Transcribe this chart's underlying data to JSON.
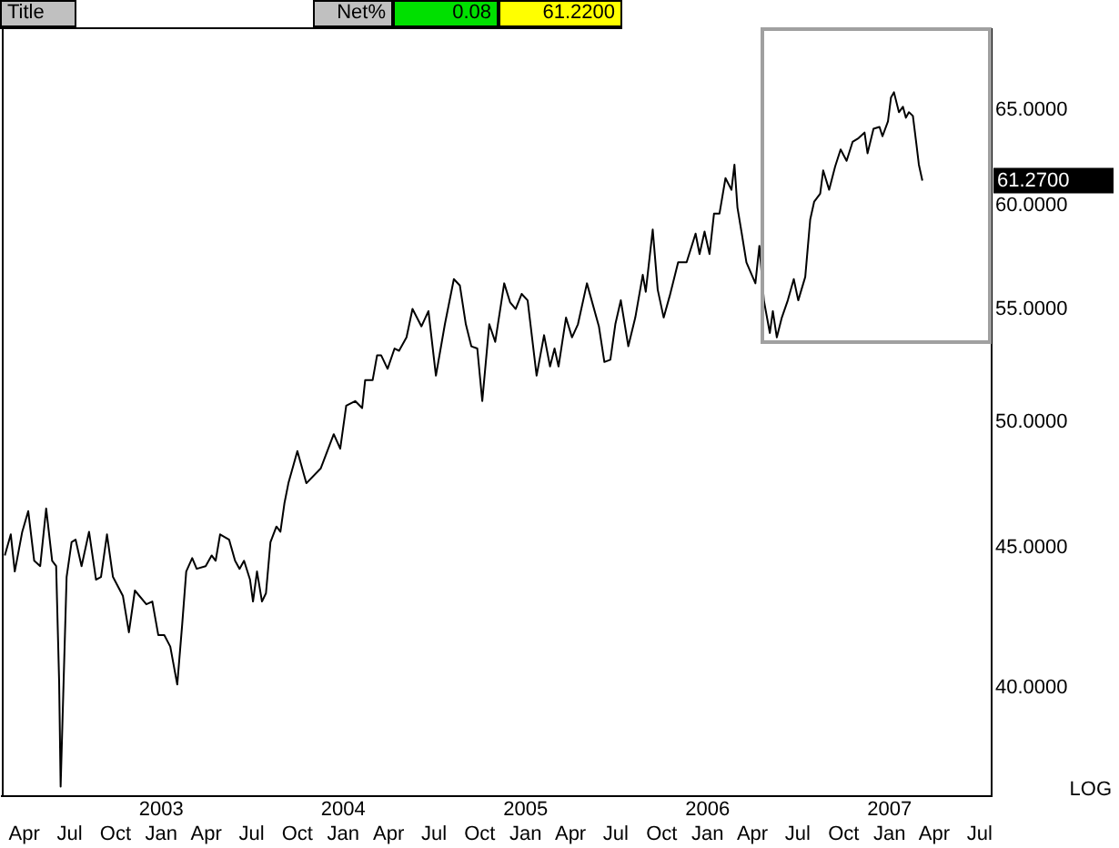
{
  "chart_data": {
    "type": "line",
    "annotations": [
      "Title",
      "Net%",
      "0.08",
      "61.2200",
      "LOG"
    ],
    "x": [
      "2002-02-21",
      "2002-03-05",
      "2002-03-13",
      "2002-03-28",
      "2002-04-09",
      "2002-04-21",
      "2002-05-03",
      "2002-05-15",
      "2002-05-27",
      "2002-06-04",
      "2002-06-10",
      "2002-06-13",
      "2002-06-19",
      "2002-06-25",
      "2002-07-05",
      "2002-07-13",
      "2002-07-25",
      "2002-08-09",
      "2002-08-23",
      "2002-09-02",
      "2002-09-14",
      "2002-09-26",
      "2002-10-16",
      "2002-10-28",
      "2002-11-09",
      "2002-12-02",
      "2002-12-14",
      "2002-12-26",
      "2003-01-07",
      "2003-01-19",
      "2003-02-02",
      "2003-02-12",
      "2003-02-20",
      "2003-03-04",
      "2003-03-13",
      "2003-03-31",
      "2003-04-12",
      "2003-04-20",
      "2003-04-29",
      "2003-05-17",
      "2003-05-29",
      "2003-06-07",
      "2003-06-16",
      "2003-06-28",
      "2003-07-04",
      "2003-07-12",
      "2003-07-22",
      "2003-07-30",
      "2003-08-08",
      "2003-08-20",
      "2003-08-28",
      "2003-09-05",
      "2003-09-13",
      "2003-10-01",
      "2003-10-19",
      "2003-11-17",
      "2003-12-13",
      "2003-12-26",
      "2004-01-07",
      "2004-01-25",
      "2004-02-08",
      "2004-02-14",
      "2004-02-29",
      "2004-03-09",
      "2004-03-17",
      "2004-03-30",
      "2004-04-13",
      "2004-04-22",
      "2004-05-07",
      "2004-05-19",
      "2004-06-06",
      "2004-06-20",
      "2004-07-05",
      "2004-07-23",
      "2004-08-10",
      "2004-08-22",
      "2004-09-03",
      "2004-09-14",
      "2004-09-26",
      "2004-10-06",
      "2004-10-20",
      "2004-11-01",
      "2004-11-19",
      "2004-12-01",
      "2004-12-12",
      "2004-12-24",
      "2005-01-05",
      "2005-01-23",
      "2005-02-07",
      "2005-02-19",
      "2005-02-28",
      "2005-03-08",
      "2005-03-23",
      "2005-04-04",
      "2005-04-16",
      "2005-05-04",
      "2005-05-28",
      "2005-06-08",
      "2005-06-20",
      "2005-06-30",
      "2005-07-11",
      "2005-07-26",
      "2005-08-09",
      "2005-08-24",
      "2005-08-30",
      "2005-09-13",
      "2005-09-23",
      "2005-10-05",
      "2005-10-17",
      "2005-11-03",
      "2005-11-20",
      "2005-12-08",
      "2005-12-16",
      "2005-12-26",
      "2006-01-05",
      "2006-01-14",
      "2006-01-25",
      "2006-02-06",
      "2006-02-18",
      "2006-02-24",
      "2006-03-02",
      "2006-03-10",
      "2006-03-20",
      "2006-04-07",
      "2006-04-15",
      "2006-04-24",
      "2006-05-06",
      "2006-05-12",
      "2006-05-20",
      "2006-05-30",
      "2006-06-11",
      "2006-06-23",
      "2006-07-02",
      "2006-07-16",
      "2006-07-26",
      "2006-08-03",
      "2006-08-15",
      "2006-08-21",
      "2006-09-02",
      "2006-09-14",
      "2006-09-25",
      "2006-10-07",
      "2006-10-19",
      "2006-10-31",
      "2006-11-12",
      "2006-11-18",
      "2006-11-30",
      "2006-12-12",
      "2006-12-18",
      "2006-12-29",
      "2007-01-04",
      "2007-01-10",
      "2007-01-20",
      "2007-01-28",
      "2007-02-03",
      "2007-02-09",
      "2007-02-17",
      "2007-02-24",
      "2007-03-01",
      "2007-03-08"
    ],
    "series": [
      {
        "color": "#000000",
        "values": [
          44.7,
          45.5,
          44.1,
          45.6,
          46.4,
          44.5,
          44.3,
          46.5,
          44.5,
          44.3,
          40.2,
          36.8,
          40.2,
          43.9,
          45.2,
          45.3,
          44.3,
          45.6,
          43.8,
          43.9,
          45.5,
          43.9,
          43.2,
          41.9,
          43.4,
          42.9,
          43.0,
          41.8,
          41.8,
          41.4,
          40.1,
          42.2,
          44.1,
          44.6,
          44.2,
          44.3,
          44.7,
          44.5,
          45.5,
          45.3,
          44.5,
          44.2,
          44.5,
          43.8,
          43.0,
          44.1,
          43.0,
          43.3,
          45.2,
          45.8,
          45.6,
          46.7,
          47.5,
          48.8,
          47.5,
          48.1,
          49.5,
          48.9,
          50.7,
          50.9,
          50.6,
          51.8,
          51.8,
          52.9,
          52.9,
          52.3,
          53.2,
          53.1,
          53.7,
          55.0,
          54.2,
          54.9,
          52.0,
          54.3,
          56.4,
          56.1,
          54.3,
          53.3,
          53.2,
          50.9,
          54.3,
          53.5,
          56.2,
          55.3,
          55.0,
          55.7,
          55.4,
          52.0,
          53.8,
          52.4,
          53.2,
          52.4,
          54.6,
          53.7,
          54.3,
          56.2,
          54.2,
          52.6,
          52.7,
          54.3,
          55.4,
          53.3,
          54.6,
          56.6,
          55.8,
          58.8,
          55.9,
          54.6,
          55.6,
          57.2,
          57.2,
          58.6,
          57.6,
          58.7,
          57.6,
          59.6,
          59.6,
          61.4,
          60.8,
          62.1,
          59.9,
          58.7,
          57.2,
          56.2,
          58.0,
          55.4,
          53.9,
          54.9,
          53.7,
          54.6,
          55.4,
          56.4,
          55.4,
          56.5,
          59.3,
          60.2,
          60.6,
          61.8,
          60.8,
          62.0,
          62.9,
          62.3,
          63.3,
          63.5,
          63.8,
          62.7,
          64.0,
          64.1,
          63.6,
          64.4,
          65.7,
          66.0,
          64.9,
          65.2,
          64.6,
          64.9,
          64.7,
          63.2,
          62.1,
          61.27
        ]
      }
    ],
    "value_labels": [
      null,
      null,
      null,
      null,
      null,
      null,
      null,
      null,
      null,
      null,
      null,
      null,
      null,
      null,
      null,
      null,
      null,
      null,
      null,
      null,
      null,
      null,
      null,
      null,
      null,
      null,
      null,
      null,
      null,
      null,
      null,
      null,
      null,
      null,
      null,
      null,
      null,
      null,
      null,
      null,
      null,
      null,
      null,
      null,
      null,
      null,
      null,
      null,
      null,
      null,
      null,
      null,
      null,
      null,
      null,
      null,
      null,
      null,
      null,
      null,
      null,
      null,
      null,
      null,
      null,
      null,
      null,
      null,
      null,
      null,
      null,
      null,
      null,
      null,
      null,
      null,
      null,
      null,
      null,
      null,
      null,
      null,
      null,
      null,
      null,
      null,
      null,
      null,
      null,
      null,
      null,
      null,
      null,
      null,
      null,
      null,
      null,
      null,
      null,
      null,
      null,
      null,
      null,
      null,
      null,
      null,
      null,
      null,
      null,
      null,
      null,
      null,
      null,
      null,
      null,
      null,
      null,
      null,
      null,
      null,
      null,
      null,
      null,
      null,
      null,
      null,
      null,
      null,
      null,
      null,
      null,
      null,
      null,
      null,
      null,
      null,
      null,
      null,
      null,
      null,
      null,
      null,
      null,
      null,
      null,
      null,
      null,
      null,
      null,
      null,
      null,
      null,
      null,
      null,
      null,
      null,
      null,
      null,
      null,
      "61.2700"
    ],
    "xlim": [
      "2002-02-15",
      "2007-07-25"
    ],
    "xticks": [
      {
        "value": "2002-04-01",
        "label": "Apr"
      },
      {
        "value": "2002-07-01",
        "label": "Jul"
      },
      {
        "value": "2002-10-01",
        "label": "Oct"
      },
      {
        "value": "2003-01-01",
        "label": "2003\nJan"
      },
      {
        "value": "2003-04-01",
        "label": "Apr"
      },
      {
        "value": "2003-07-01",
        "label": "Jul"
      },
      {
        "value": "2003-10-01",
        "label": "Oct"
      },
      {
        "value": "2004-01-01",
        "label": "2004\nJan"
      },
      {
        "value": "2004-04-01",
        "label": "Apr"
      },
      {
        "value": "2004-07-01",
        "label": "Jul"
      },
      {
        "value": "2004-10-01",
        "label": "Oct"
      },
      {
        "value": "2005-01-01",
        "label": "2005\nJan"
      },
      {
        "value": "2005-04-01",
        "label": "Apr"
      },
      {
        "value": "2005-07-01",
        "label": "Jul"
      },
      {
        "value": "2005-10-01",
        "label": "Oct"
      },
      {
        "value": "2006-01-01",
        "label": "2006\nJan"
      },
      {
        "value": "2006-04-01",
        "label": "Apr"
      },
      {
        "value": "2006-07-01",
        "label": "Jul"
      },
      {
        "value": "2006-10-01",
        "label": "Oct"
      },
      {
        "value": "2007-01-01",
        "label": "2007\nJan"
      },
      {
        "value": "2007-04-01",
        "label": "Apr"
      },
      {
        "value": "2007-07-01",
        "label": "Jul"
      }
    ],
    "ylim": [
      36.5,
      69.6
    ],
    "yticks": [
      {
        "value": 40,
        "label": "40.0000"
      },
      {
        "value": 45,
        "label": "45.0000"
      },
      {
        "value": 50,
        "label": "50.0000"
      },
      {
        "value": 55,
        "label": "55.0000"
      },
      {
        "value": 60,
        "label": "60.0000"
      },
      {
        "value": 65,
        "label": "65.0000"
      }
    ],
    "log": true,
    "grid": false,
    "legend": false,
    "marker": "none",
    "line_style": "solid"
  }
}
